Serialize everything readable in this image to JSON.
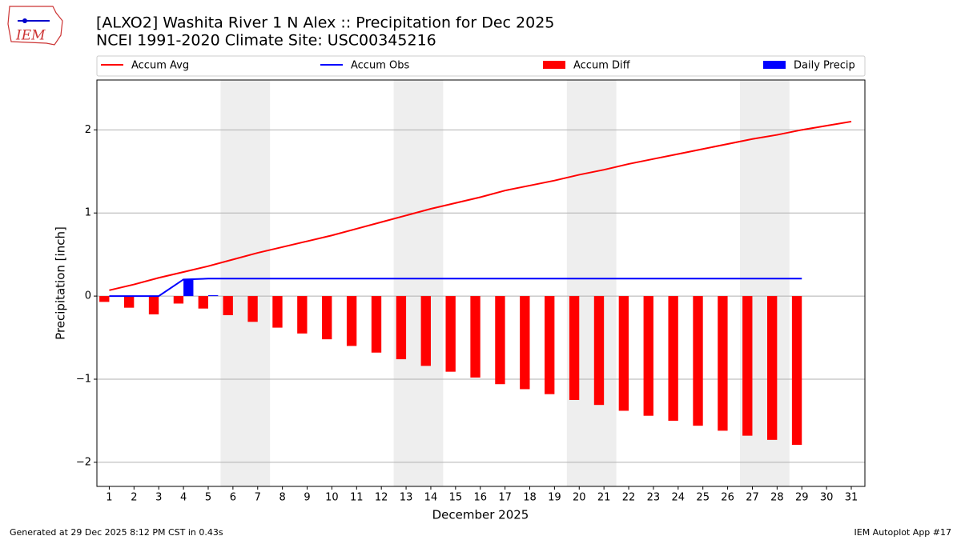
{
  "chart_data": {
    "type": "bar",
    "title": "[ALXO2] Washita River 1 N Alex :: Precipitation for Dec 2025",
    "subtitle": "NCEI 1991-2020 Climate Site: USC00345216",
    "logo_text": "IEM",
    "x_label": "December 2025",
    "y_label": "Precipitation [inch]",
    "footer_left": "Generated at 29 Dec 2025 8:12 PM CST in 0.43s",
    "footer_right": "IEM Autoplot App #17",
    "x": [
      1,
      2,
      3,
      4,
      5,
      6,
      7,
      8,
      9,
      10,
      11,
      12,
      13,
      14,
      15,
      16,
      17,
      18,
      19,
      20,
      21,
      22,
      23,
      24,
      25,
      26,
      27,
      28,
      29,
      30,
      31
    ],
    "xlim": [
      0.5,
      31.55
    ],
    "xticks": [
      1,
      2,
      3,
      4,
      5,
      6,
      7,
      8,
      9,
      10,
      11,
      12,
      13,
      14,
      15,
      16,
      17,
      18,
      19,
      20,
      21,
      22,
      23,
      24,
      25,
      26,
      27,
      28,
      29,
      30,
      31
    ],
    "ylim": [
      -2.29,
      2.6
    ],
    "yticks": [
      {
        "value": -2,
        "label": "−2"
      },
      {
        "value": -1,
        "label": "−1"
      },
      0,
      1,
      2
    ],
    "grid": true,
    "weekend_spans": [
      [
        5.5,
        7.5
      ],
      [
        12.5,
        14.5
      ],
      [
        19.5,
        21.5
      ],
      [
        26.5,
        28.5
      ]
    ],
    "weekend_color": "#eeeeee",
    "series": [
      {
        "name": "Accum Avg",
        "kind": "line",
        "color": "#ff0000",
        "values": [
          0.07,
          0.14,
          0.22,
          0.29,
          0.36,
          0.44,
          0.52,
          0.59,
          0.66,
          0.73,
          0.81,
          0.89,
          0.97,
          1.05,
          1.12,
          1.19,
          1.27,
          1.33,
          1.39,
          1.46,
          1.52,
          1.59,
          1.65,
          1.71,
          1.77,
          1.83,
          1.89,
          1.94,
          2.0,
          2.05,
          2.1
        ]
      },
      {
        "name": "Accum Obs",
        "kind": "line",
        "color": "#0000ff",
        "values": [
          0,
          0,
          0,
          0.2,
          0.21,
          0.21,
          0.21,
          0.21,
          0.21,
          0.21,
          0.21,
          0.21,
          0.21,
          0.21,
          0.21,
          0.21,
          0.21,
          0.21,
          0.21,
          0.21,
          0.21,
          0.21,
          0.21,
          0.21,
          0.21,
          0.21,
          0.21,
          0.21,
          0.21,
          null,
          null
        ]
      },
      {
        "name": "Accum Diff",
        "kind": "bar",
        "color": "#ff0000",
        "values": [
          -0.07,
          -0.14,
          -0.22,
          -0.09,
          -0.15,
          -0.23,
          -0.31,
          -0.38,
          -0.45,
          -0.52,
          -0.6,
          -0.68,
          -0.76,
          -0.84,
          -0.91,
          -0.98,
          -1.06,
          -1.12,
          -1.18,
          -1.25,
          -1.31,
          -1.38,
          -1.44,
          -1.5,
          -1.56,
          -1.62,
          -1.68,
          -1.73,
          -1.79,
          null,
          null
        ]
      },
      {
        "name": "Daily Precip",
        "kind": "bar",
        "color": "#0000ff",
        "values": [
          0,
          0,
          0,
          0.2,
          0.01,
          0,
          0,
          0,
          0,
          0,
          0,
          0,
          0,
          0,
          0,
          0,
          0,
          0,
          0,
          0,
          0,
          0,
          0,
          0,
          0,
          0,
          0,
          0,
          0,
          null,
          null
        ]
      }
    ]
  }
}
